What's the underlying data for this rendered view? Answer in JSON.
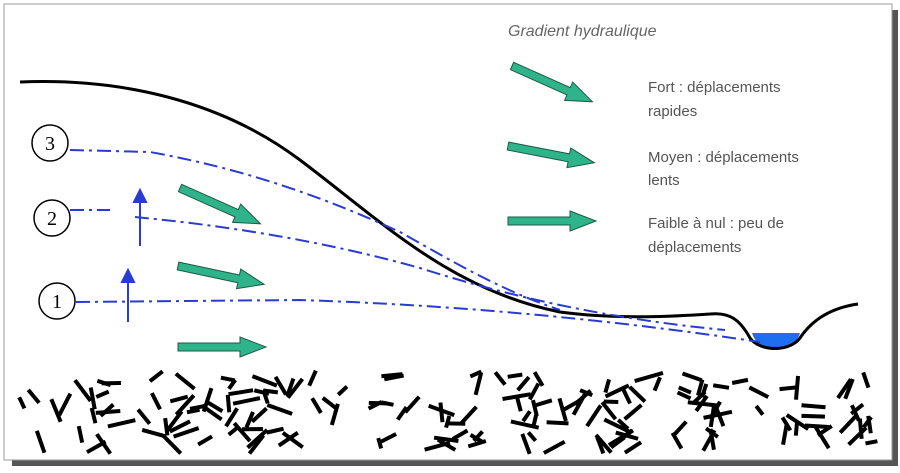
{
  "title": "Gradient hydraulique",
  "legend": [
    {
      "lines": [
        "Fort : déplacements",
        "rapides"
      ]
    },
    {
      "lines": [
        "Moyen : déplacements",
        "lents"
      ]
    },
    {
      "lines": [
        "Faible à nul : peu de",
        "déplacements"
      ]
    }
  ],
  "levels": [
    "3",
    "2",
    "1"
  ]
}
